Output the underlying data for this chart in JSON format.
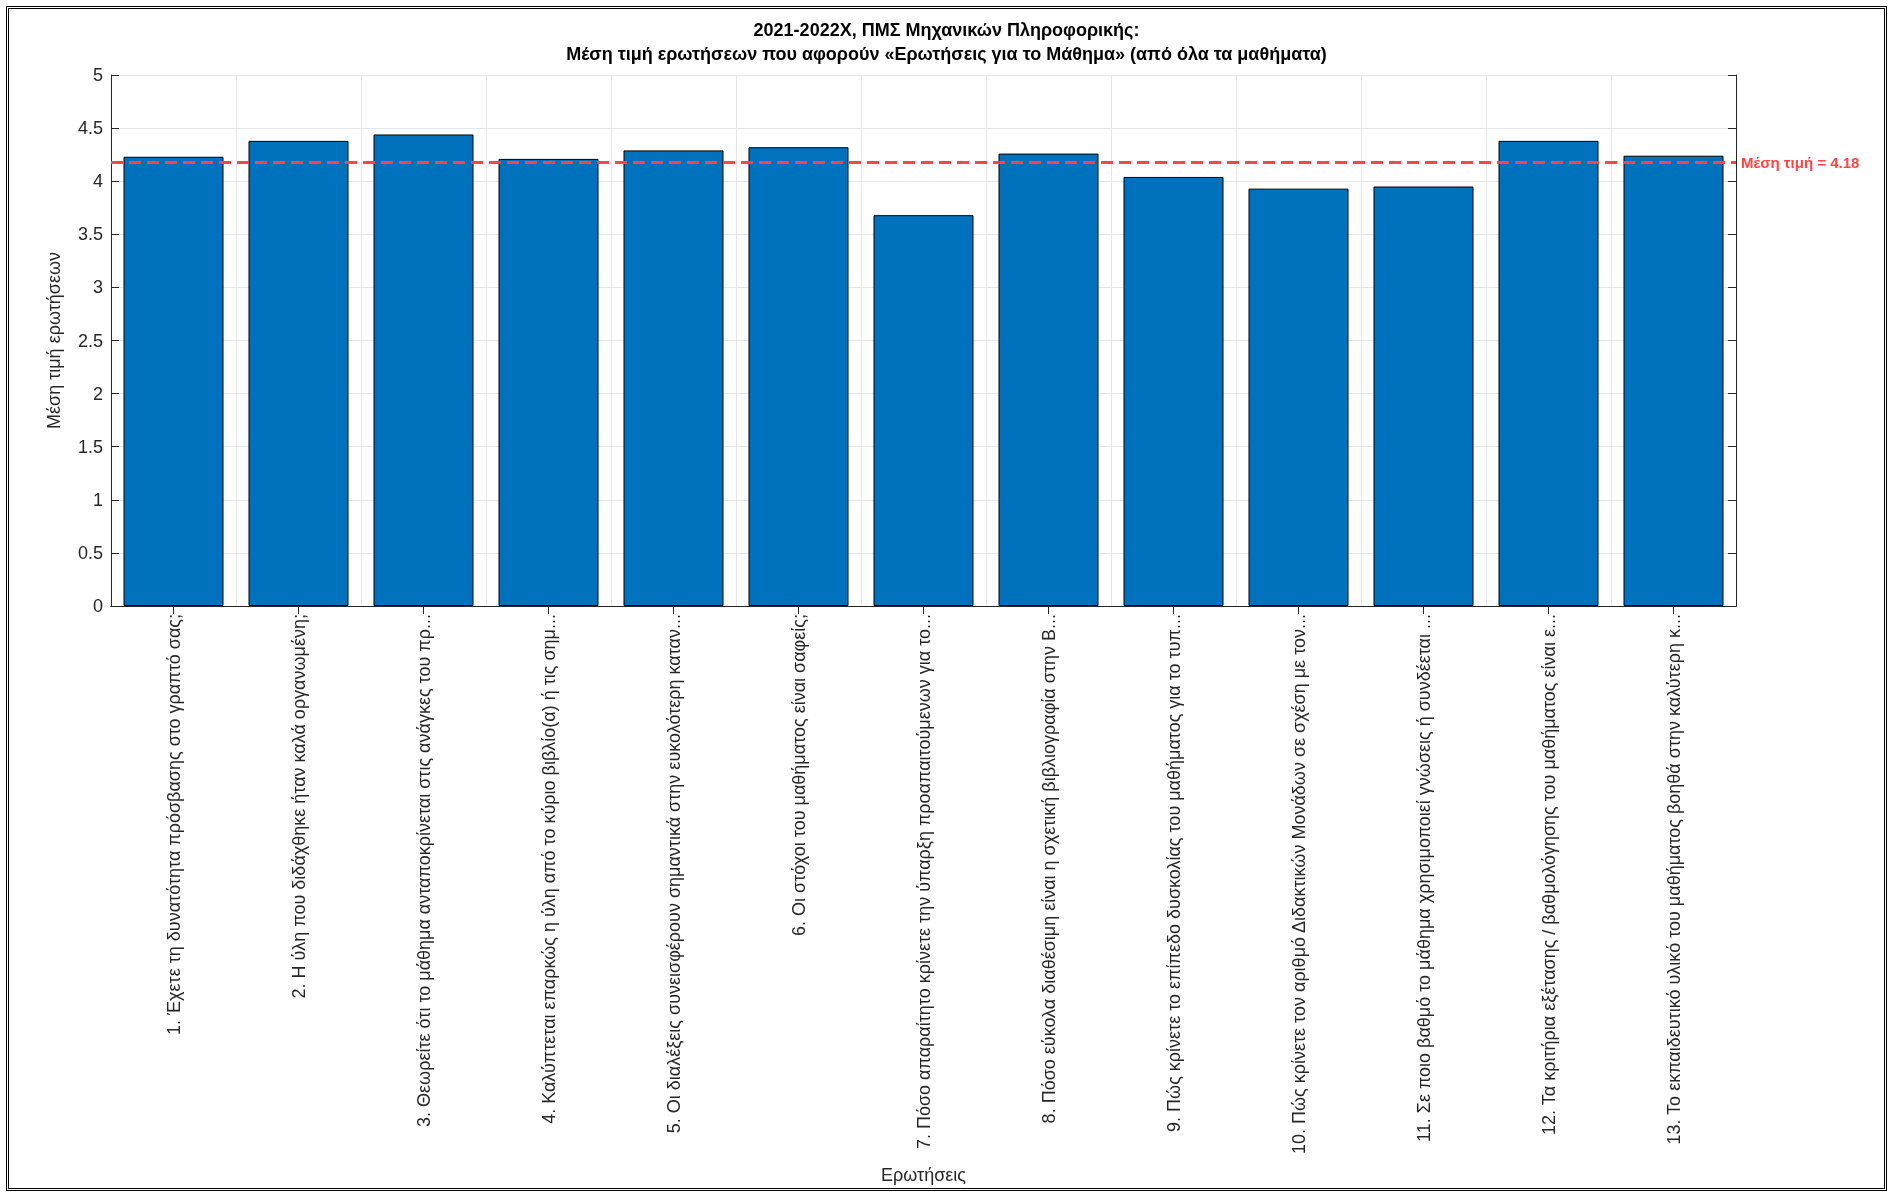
{
  "chart_data": {
    "type": "bar",
    "title": "2021-2022Χ, ΠΜΣ Μηχανικών Πληροφορικής:\nΜέση τιμή ερωτήσεων που αφορούν «Ερωτήσεις για το Μάθημα» (από όλα τα μαθήματα)",
    "xlabel": "Ερωτήσεις",
    "ylabel": "Μέση τιμή ερωτήσεων",
    "categories": [
      "1. Έχετε τη δυνατότητα πρόσβασης στο γραπτό σας;",
      "2. Η ύλη που διδάχθηκε ήταν καλά οργανωμένη;",
      "3. Θεωρείτε ότι το μάθημα ανταποκρίνεται στις ανάγκες του πρ...",
      "4. Καλύπτεται επαρκώς η ύλη από το κύριο βιβλίο(α) ή τις σημ...",
      "5. Οι διαλέξεις συνεισφέρουν σημαντικά στην ευκολότερη καταν...",
      "6. Οι στόχοι του μαθήματος είναι σαφείς;",
      "7. Πόσο απαραίτητο κρίνετε την ύπαρξη προαπαιτούμενων για το...",
      "8. Πόσο εύκολα διαθέσιμη είναι η σχετική βιβλιογραφία στην Β...",
      "9. Πώς κρίνετε το επίπεδο δυσκολίας του μαθήματος για το τυπ...",
      "10. Πώς κρίνετε τον αριθμό Διδακτικών Μονάδων σε σχέση με τον...",
      "11. Σε ποιο βαθμό το μάθημα χρησιμοποιεί γνώσεις ή συνδέεται ...",
      "12. Τα κριτήρια εξέτασης / βαθμολόγησης του μαθήματος είναι ε...",
      "13. Το εκπαιδευτικό υλικό του μαθήματος βοηθά στην καλύτερη κ..."
    ],
    "values": [
      4.23,
      4.38,
      4.44,
      4.21,
      4.29,
      4.32,
      3.68,
      4.26,
      4.04,
      3.93,
      3.95,
      4.38,
      4.24
    ],
    "color": "#0072bd",
    "ylim": [
      0,
      5
    ],
    "yticks": [
      0,
      0.5,
      1,
      1.5,
      2,
      2.5,
      3,
      3.5,
      4,
      4.5,
      5
    ],
    "grid": true,
    "ref_lines": [
      {
        "axis": "y",
        "value": 4.18,
        "label": "Μέση τιμή = 4.18",
        "color": "#ff4444",
        "line_style": "dashed"
      }
    ]
  }
}
